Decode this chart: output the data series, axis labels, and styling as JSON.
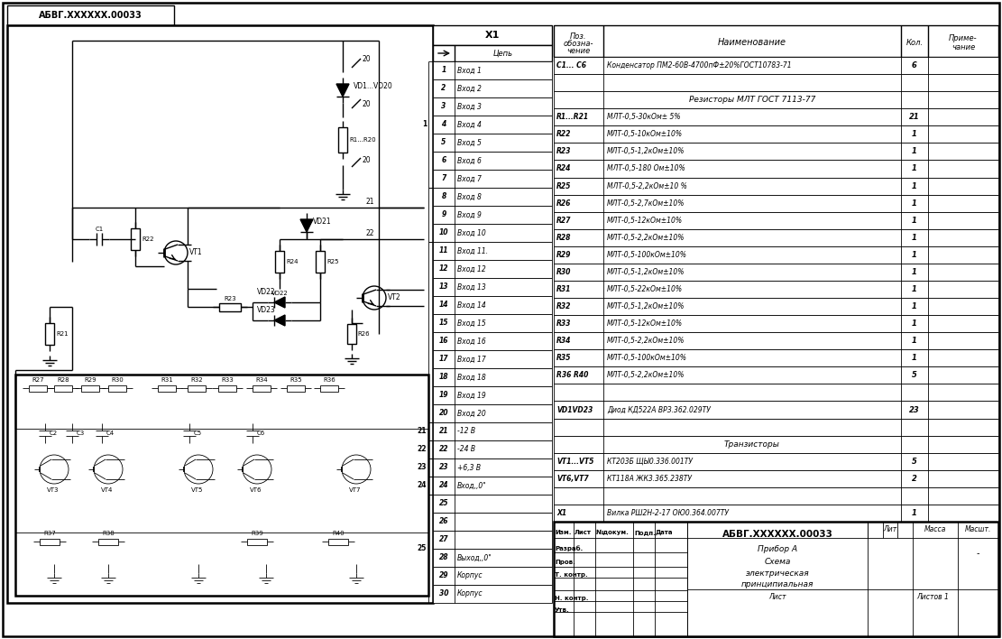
{
  "title": "АБВГ.XXXXXX.00033",
  "bg_color": "#f0f0f0",
  "border_color": "#000000",
  "bom_rows": [
    {
      "pos": "C1... C6",
      "name": "Конденсатор ПМ2-60В-4700пФ±20%ГОСТ10783-71",
      "qty": "6",
      "note": ""
    },
    {
      "pos": "",
      "name": "",
      "qty": "",
      "note": ""
    },
    {
      "pos": "",
      "name": "Резисторы МЛТ ГОСТ 7113-77",
      "qty": "",
      "note": ""
    },
    {
      "pos": "R1...R21",
      "name": "МЛТ-0,5-30кОм± 5%",
      "qty": "21",
      "note": ""
    },
    {
      "pos": "R22",
      "name": "МЛТ-0,5-10кОм±10%",
      "qty": "1",
      "note": ""
    },
    {
      "pos": "R23",
      "name": "МЛТ-0,5-1,2кОм±10%",
      "qty": "1",
      "note": ""
    },
    {
      "pos": "R24",
      "name": "МЛТ-0,5-180 Ом±10%",
      "qty": "1",
      "note": ""
    },
    {
      "pos": "R25",
      "name": "МЛТ-0,5-2,2кОм±10 %",
      "qty": "1",
      "note": ""
    },
    {
      "pos": "R26",
      "name": "МЛТ-0,5-2,7кОм±10%",
      "qty": "1",
      "note": ""
    },
    {
      "pos": "R27",
      "name": "МЛТ-0,5-12кОм±10%",
      "qty": "1",
      "note": ""
    },
    {
      "pos": "R28",
      "name": "МЛТ-0,5-2,2кОм±10%",
      "qty": "1",
      "note": ""
    },
    {
      "pos": "R29",
      "name": "МЛТ-0,5-100кОм±10%",
      "qty": "1",
      "note": ""
    },
    {
      "pos": "R30",
      "name": "МЛТ-0,5-1,2кОм±10%",
      "qty": "1",
      "note": ""
    },
    {
      "pos": "R31",
      "name": "МЛТ-0,5-22кОм±10%",
      "qty": "1",
      "note": ""
    },
    {
      "pos": "R32",
      "name": "МЛТ-0,5-1,2кОм±10%",
      "qty": "1",
      "note": ""
    },
    {
      "pos": "R33",
      "name": "МЛТ-0,5-12кОм±10%",
      "qty": "1",
      "note": ""
    },
    {
      "pos": "R34",
      "name": "МЛТ-0,5-2,2кОм±10%",
      "qty": "1",
      "note": ""
    },
    {
      "pos": "R35",
      "name": "МЛТ-0,5-100кОм±10%",
      "qty": "1",
      "note": ""
    },
    {
      "pos": "R36 R40",
      "name": "МЛТ-0,5-2,2кОм±10%",
      "qty": "5",
      "note": ""
    },
    {
      "pos": "",
      "name": "",
      "qty": "",
      "note": ""
    },
    {
      "pos": "VD1VD23",
      "name": "Диод КД522А ВРЗ.362.029ТУ",
      "qty": "23",
      "note": ""
    },
    {
      "pos": "",
      "name": "",
      "qty": "",
      "note": ""
    },
    {
      "pos": "",
      "name": "Транзисторы",
      "qty": "",
      "note": ""
    },
    {
      "pos": "VT1...VT5",
      "name": "КТ203Б ЩЫ0.336.001ТУ",
      "qty": "5",
      "note": ""
    },
    {
      "pos": "VT6,VT7",
      "name": "КТ118А ЖК3.365.238ТУ",
      "qty": "2",
      "note": ""
    },
    {
      "pos": "",
      "name": "",
      "qty": "",
      "note": ""
    },
    {
      "pos": "X1",
      "name": "Вилка РШ2Н-2-17 ОЮ0.364.007ТУ",
      "qty": "1",
      "note": ""
    }
  ],
  "connector_rows": [
    {
      "num": "1",
      "chain": "Вход 1"
    },
    {
      "num": "2",
      "chain": "Вход 2"
    },
    {
      "num": "3",
      "chain": "Вход 3"
    },
    {
      "num": "4",
      "chain": "Вход 4"
    },
    {
      "num": "5",
      "chain": "Вход 5"
    },
    {
      "num": "6",
      "chain": "Вход 6"
    },
    {
      "num": "7",
      "chain": "Вход 7"
    },
    {
      "num": "8",
      "chain": "Вход 8"
    },
    {
      "num": "9",
      "chain": "Вход 9"
    },
    {
      "num": "10",
      "chain": "Вход 10"
    },
    {
      "num": "11",
      "chain": "Вход 11."
    },
    {
      "num": "12",
      "chain": "Вход 12"
    },
    {
      "num": "13",
      "chain": "Вход 13"
    },
    {
      "num": "14",
      "chain": "Вход 14"
    },
    {
      "num": "15",
      "chain": "Вход 15"
    },
    {
      "num": "16",
      "chain": "Вход 16"
    },
    {
      "num": "17",
      "chain": "Вход 17"
    },
    {
      "num": "18",
      "chain": "Вход 18"
    },
    {
      "num": "19",
      "chain": "Вход 19"
    },
    {
      "num": "20",
      "chain": "Вход 20"
    },
    {
      "num": "21",
      "chain": "-12 В"
    },
    {
      "num": "22",
      "chain": "-24 В"
    },
    {
      "num": "23",
      "chain": "+6,3 В"
    },
    {
      "num": "24",
      "chain": "Вход,,0\""
    },
    {
      "num": "25",
      "chain": ""
    },
    {
      "num": "26",
      "chain": ""
    },
    {
      "num": "27",
      "chain": ""
    },
    {
      "num": "28",
      "chain": "Выход,,0\""
    },
    {
      "num": "29",
      "chain": "Корпус"
    },
    {
      "num": "30",
      "chain": "Корпус"
    }
  ],
  "stamp_rows": [
    "Изм. Лист №докум. Подп. Дата",
    "Разраб.",
    "Пров.",
    "Т. контр.",
    "",
    "Н. контр.",
    "Утв."
  ]
}
